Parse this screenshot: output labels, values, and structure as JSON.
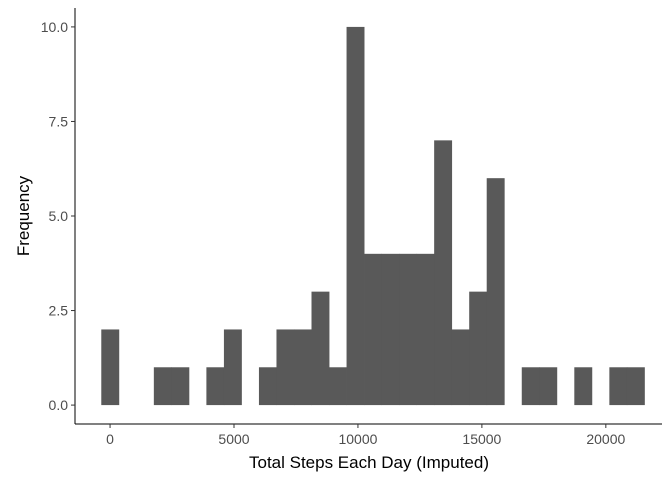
{
  "chart_data": {
    "type": "bar",
    "subtype": "histogram",
    "title": "",
    "xlabel": "Total Steps Each Day (Imputed)",
    "ylabel": "Frequency",
    "bin_width": 707,
    "bins": [
      {
        "center": 0,
        "count": 2
      },
      {
        "center": 2120,
        "count": 1
      },
      {
        "center": 2827,
        "count": 1
      },
      {
        "center": 4240,
        "count": 1
      },
      {
        "center": 4947,
        "count": 2
      },
      {
        "center": 6360,
        "count": 1
      },
      {
        "center": 7067,
        "count": 2
      },
      {
        "center": 7774,
        "count": 2
      },
      {
        "center": 8480,
        "count": 3
      },
      {
        "center": 9187,
        "count": 1
      },
      {
        "center": 9894,
        "count": 10
      },
      {
        "center": 10601,
        "count": 4
      },
      {
        "center": 11308,
        "count": 4
      },
      {
        "center": 12014,
        "count": 4
      },
      {
        "center": 12721,
        "count": 4
      },
      {
        "center": 13428,
        "count": 7
      },
      {
        "center": 14135,
        "count": 2
      },
      {
        "center": 14842,
        "count": 3
      },
      {
        "center": 15548,
        "count": 6
      },
      {
        "center": 16962,
        "count": 1
      },
      {
        "center": 17669,
        "count": 1
      },
      {
        "center": 19082,
        "count": 1
      },
      {
        "center": 20496,
        "count": 1
      },
      {
        "center": 21203,
        "count": 1
      }
    ],
    "xlim": [
      -1414,
      22266
    ],
    "ylim": [
      -0.5,
      10.5
    ],
    "x_ticks": [
      0,
      5000,
      10000,
      15000,
      20000
    ],
    "x_tick_labels": [
      "0",
      "5000",
      "10000",
      "15000",
      "20000"
    ],
    "y_ticks": [
      0,
      2.5,
      5,
      7.5,
      10
    ],
    "y_tick_labels": [
      "0.0",
      "2.5",
      "5.0",
      "7.5",
      "10.0"
    ],
    "grid": false,
    "legend": "none",
    "colors": {
      "bar": "#595959",
      "axis": "#000000",
      "tick_text": "#4d4d4d",
      "background": "#ffffff"
    }
  }
}
